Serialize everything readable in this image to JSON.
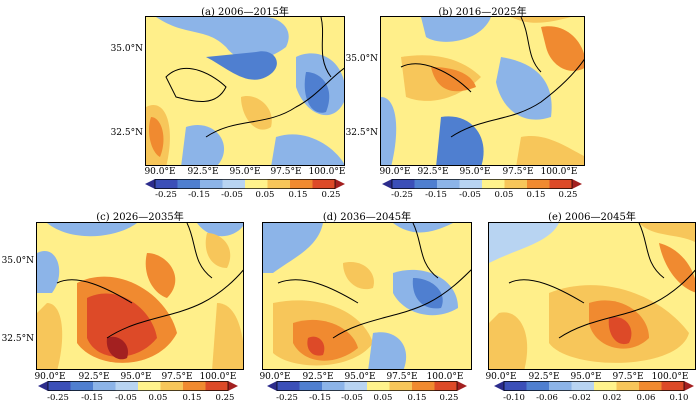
{
  "panels": [
    {
      "id": "a",
      "title": "(a) 2006—2015年",
      "x_ticks": [
        "90.0°E",
        "92.5°E",
        "95.0°E",
        "97.5°E",
        "100.0°E"
      ],
      "y_ticks": [
        "35.0°N",
        "32.5°N"
      ],
      "colorbar": {
        "labels": [
          "-0.25",
          "-0.15",
          "-0.05",
          "0.05",
          "0.15",
          "0.25"
        ]
      }
    },
    {
      "id": "b",
      "title": "(b) 2016—2025年",
      "x_ticks": [
        "90.0°E",
        "92.5°E",
        "95.0°E",
        "97.5°E",
        "100.0°E"
      ],
      "y_ticks": [
        "35.0°N",
        "32.5°N"
      ],
      "colorbar": {
        "labels": [
          "-0.25",
          "-0.15",
          "-0.05",
          "0.05",
          "0.15",
          "0.25"
        ]
      }
    },
    {
      "id": "c",
      "title": "(c) 2026—2035年",
      "x_ticks": [
        "90.0°E",
        "92.5°E",
        "95.0°E",
        "97.5°E",
        "100.0°E"
      ],
      "y_ticks": [
        "35.0°N",
        "32.5°N"
      ],
      "colorbar": {
        "labels": [
          "-0.25",
          "-0.15",
          "-0.05",
          "0.05",
          "0.15",
          "0.25"
        ]
      }
    },
    {
      "id": "d",
      "title": "(d) 2036—2045年",
      "x_ticks": [
        "90.0°E",
        "92.5°E",
        "95.0°E",
        "97.5°E",
        "100.0°E"
      ],
      "y_ticks": [],
      "colorbar": {
        "labels": [
          "-0.25",
          "-0.15",
          "-0.05",
          "0.05",
          "0.15",
          "0.25"
        ]
      }
    },
    {
      "id": "e",
      "title": "(e) 2006—2045年",
      "x_ticks": [
        "90.0°E",
        "92.5°E",
        "95.0°E",
        "97.5°E",
        "100.0°E"
      ],
      "y_ticks": [],
      "colorbar": {
        "labels": [
          "-0.10",
          "-0.06",
          "-0.02",
          "0.02",
          "0.06",
          "0.10"
        ]
      }
    }
  ],
  "palette": [
    "#2c2c8c",
    "#3b4fb8",
    "#4f7fd0",
    "#8cb4e8",
    "#fff38c",
    "#f7c65a",
    "#f08a30",
    "#dd4a28",
    "#a32020"
  ]
}
